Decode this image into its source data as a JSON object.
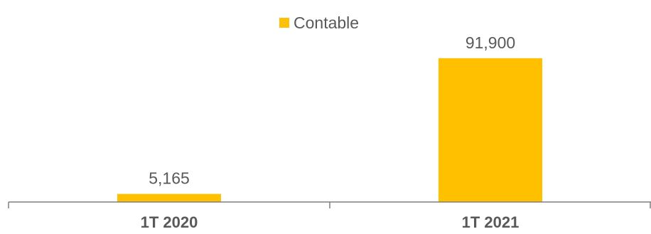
{
  "chart_data": {
    "type": "bar",
    "categories": [
      "1T 2020",
      "1T 2021"
    ],
    "series": [
      {
        "name": "Contable",
        "values": [
          5165,
          91900
        ],
        "value_labels": [
          "5,165",
          "91,900"
        ]
      }
    ],
    "title": "",
    "xlabel": "",
    "ylabel": "",
    "ylim": [
      0,
      120000
    ],
    "grid": false,
    "legend_position": "top-center",
    "colors": {
      "bar": "#FFC000",
      "axis": "#7f7f7f",
      "text": "#595959"
    }
  }
}
